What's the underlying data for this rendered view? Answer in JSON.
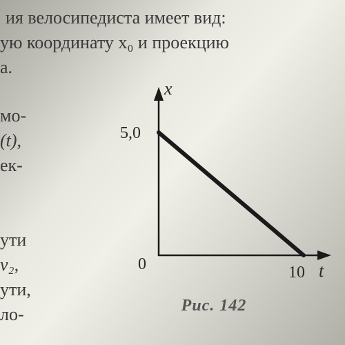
{
  "fragments": {
    "line1": "ия велосипедиста имеет вид:",
    "line2": "ую координату x₀ и проекцию",
    "line3": "а.",
    "line4a": "мо-",
    "line4b": "(t),",
    "line4c": "ек-",
    "line5a": "ути",
    "line5b": "v₂,",
    "line5c": "ути,",
    "line5d": "ло-"
  },
  "chart": {
    "type": "line",
    "x_axis_label": "t",
    "y_axis_label": "x",
    "origin_label": "0",
    "y_tick_label": "5,0",
    "x_tick_label": "10",
    "xlim": [
      0,
      10
    ],
    "ylim": [
      0,
      5
    ],
    "data_line": {
      "x1": 0,
      "y1": 5,
      "x2": 10,
      "y2": 0
    },
    "axis_color": "#1a1a1a",
    "axis_width": 2.5,
    "line_color": "#1a1a1a",
    "line_width": 6,
    "caption": "Рис. 142"
  }
}
